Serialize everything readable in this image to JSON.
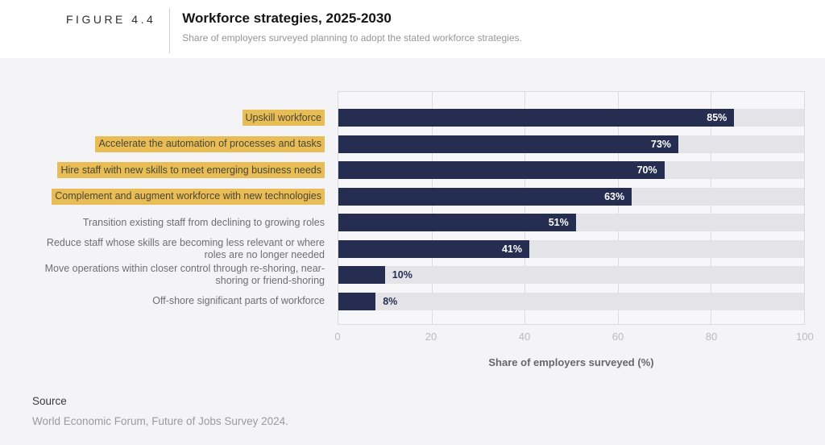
{
  "figure": {
    "label": "FIGURE 4.4",
    "title": "Workforce strategies, 2025-2030",
    "subtitle": "Share of employers surveyed planning to adopt the stated workforce strategies."
  },
  "chart_data": {
    "type": "bar",
    "orientation": "horizontal",
    "title": "Workforce strategies, 2025-2030",
    "categories": [
      "Upskill workforce",
      "Accelerate the automation of processes and tasks",
      "Hire staff with new skills to meet emerging business needs",
      "Complement and augment workforce with new technologies",
      "Transition existing staff from declining to growing roles",
      "Reduce staff whose skills are becoming less relevant or where roles are no longer needed",
      "Move operations within closer control through re-shoring, near-shoring or friend-shoring",
      "Off-shore significant parts of workforce"
    ],
    "values": [
      85,
      73,
      70,
      63,
      51,
      41,
      10,
      8
    ],
    "value_labels": [
      "85%",
      "73%",
      "70%",
      "63%",
      "51%",
      "41%",
      "10%",
      "8%"
    ],
    "highlighted": [
      true,
      true,
      true,
      true,
      false,
      false,
      false,
      false
    ],
    "xlabel": "Share of employers surveyed (%)",
    "ylabel": "",
    "xlim": [
      0,
      100
    ],
    "xticks": [
      0,
      20,
      40,
      60,
      80,
      100
    ],
    "grid": true,
    "legend": "none",
    "colors": {
      "bar": "#252e50",
      "track": "#e3e3e8",
      "highlight": "#e9bd55",
      "highlight_text": "#4a4636",
      "value_inside": "#ffffff",
      "value_outside": "#252e50",
      "gridline": "#dcdce1"
    }
  },
  "source": {
    "heading": "Source",
    "text": "World Economic Forum, Future of Jobs Survey 2024."
  }
}
